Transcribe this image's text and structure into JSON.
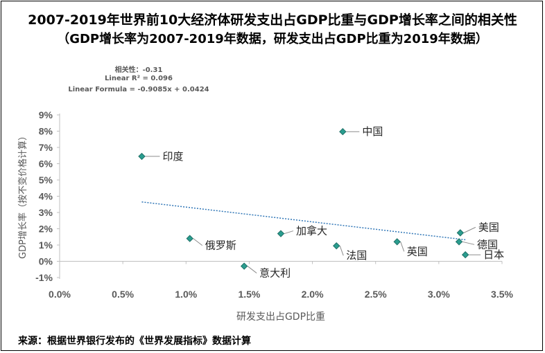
{
  "title_line1": "2007-2019年世界前10大经济体研发支出占GDP比重与GDP增长率之间的相关性",
  "title_line2": "（GDP增长率为2007-2019年数据，研发支出占GDP比重为2019年数据）",
  "stats": {
    "correlation": "相关性：-0.31",
    "r_squared": "Linear R² = 0.096",
    "formula": "Linear Formula = -0.9085x + 0.0424"
  },
  "source": "来源：根据世界银行发布的《世界发展指标》数据计算",
  "colors": {
    "point": "#2a9d8f",
    "point_stroke": "#1f6f66",
    "trend": "#2e75b6",
    "axis": "#bfbfbf"
  },
  "chart_data": {
    "type": "scatter",
    "xlabel": "研发支出占GDP比重",
    "ylabel": "GDP增长率（按不变价格计算）",
    "xlim": [
      0.0,
      0.035
    ],
    "ylim": [
      -0.01,
      0.09
    ],
    "x_ticks": [
      "0.0%",
      "0.5%",
      "1.0%",
      "1.5%",
      "2.0%",
      "2.5%",
      "3.0%",
      "3.5%"
    ],
    "y_ticks": [
      "-1%",
      "0%",
      "1%",
      "2%",
      "3%",
      "4%",
      "5%",
      "6%",
      "7%",
      "8%",
      "9%"
    ],
    "points": [
      {
        "name": "中国",
        "x": 0.0224,
        "y": 0.0797
      },
      {
        "name": "印度",
        "x": 0.0065,
        "y": 0.0645
      },
      {
        "name": "美国",
        "x": 0.0317,
        "y": 0.0175
      },
      {
        "name": "德国",
        "x": 0.0316,
        "y": 0.012
      },
      {
        "name": "日本",
        "x": 0.0321,
        "y": 0.004
      },
      {
        "name": "英国",
        "x": 0.0267,
        "y": 0.012
      },
      {
        "name": "法国",
        "x": 0.0219,
        "y": 0.0095
      },
      {
        "name": "加拿大",
        "x": 0.0175,
        "y": 0.017
      },
      {
        "name": "俄罗斯",
        "x": 0.0103,
        "y": 0.014
      },
      {
        "name": "意大利",
        "x": 0.0146,
        "y": -0.003
      }
    ],
    "trendline": {
      "slope": -0.9085,
      "intercept": 0.0424,
      "x_range": [
        0.0065,
        0.0321
      ]
    }
  }
}
